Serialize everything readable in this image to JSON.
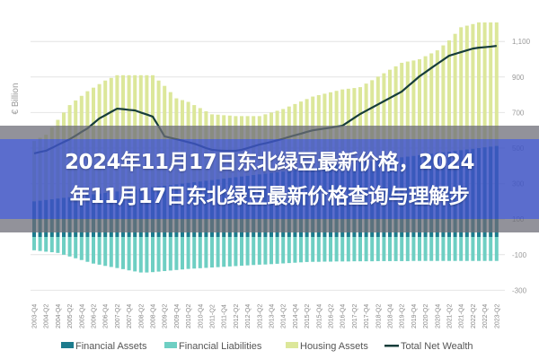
{
  "overlay_title": {
    "line1": "2024年11月17日东北绿豆最新价格，2024",
    "line2": "年11月17日东北绿豆最新价格查询与理解步"
  },
  "chart_data": {
    "type": "bar",
    "title": "",
    "xlabel": "",
    "ylabel": "€ Billion",
    "ylim": [
      -300,
      1200
    ],
    "y_ticks": [
      {
        "value": 1100,
        "label": "1,100"
      },
      {
        "value": 900,
        "label": "900"
      },
      {
        "value": 700,
        "label": "700"
      },
      {
        "value": 500,
        "label": "500"
      },
      {
        "value": 300,
        "label": "300"
      },
      {
        "value": 100,
        "label": "100"
      },
      {
        "value": -100,
        "label": "-100"
      },
      {
        "value": -300,
        "label": "-300"
      }
    ],
    "grid": true,
    "legend_position": "bottom",
    "categories": [
      "2003-Q4",
      "2004-Q1",
      "2004-Q2",
      "2004-Q3",
      "2004-Q4",
      "2005-Q1",
      "2005-Q2",
      "2005-Q3",
      "2005-Q4",
      "2006-Q1",
      "2006-Q2",
      "2006-Q3",
      "2006-Q4",
      "2007-Q1",
      "2007-Q2",
      "2007-Q3",
      "2007-Q4",
      "2008-Q1",
      "2008-Q2",
      "2008-Q3",
      "2008-Q4",
      "2009-Q1",
      "2009-Q2",
      "2009-Q3",
      "2009-Q4",
      "2010-Q1",
      "2010-Q2",
      "2010-Q3",
      "2010-Q4",
      "2011-Q1",
      "2011-Q2",
      "2011-Q3",
      "2011-Q4",
      "2012-Q1",
      "2012-Q2",
      "2012-Q3",
      "2012-Q4",
      "2013-Q1",
      "2013-Q2",
      "2013-Q3",
      "2013-Q4",
      "2014-Q1",
      "2014-Q2",
      "2014-Q3",
      "2014-Q4",
      "2015-Q1",
      "2015-Q2",
      "2015-Q3",
      "2015-Q4",
      "2016-Q1",
      "2016-Q2",
      "2016-Q3",
      "2016-Q4",
      "2017-Q1",
      "2017-Q2",
      "2017-Q3",
      "2017-Q4",
      "2018-Q1",
      "2018-Q2",
      "2018-Q3",
      "2018-Q4",
      "2019-Q1",
      "2019-Q2",
      "2019-Q3",
      "2019-Q4",
      "2020-Q1",
      "2020-Q2",
      "2020-Q3",
      "2020-Q4",
      "2021-Q1",
      "2021-Q2",
      "2021-Q3",
      "2021-Q4",
      "2022-Q1",
      "2022-Q2",
      "2022-Q3",
      "2022-Q4",
      "2023-Q1",
      "2023-Q2"
    ],
    "series": [
      {
        "name": "Housing Assets",
        "type": "bar",
        "color": "#dce79a",
        "values": [
          540,
          558,
          575,
          617,
          659,
          700,
          742,
          768,
          794,
          820,
          840,
          860,
          880,
          895,
          910,
          910,
          910,
          910,
          910,
          910,
          910,
          880,
          850,
          815,
          780,
          770,
          760,
          742,
          725,
          707,
          690,
          688,
          685,
          683,
          680,
          680,
          680,
          680,
          680,
          690,
          700,
          710,
          720,
          734,
          748,
          762,
          776,
          790,
          798,
          806,
          814,
          822,
          830,
          834,
          838,
          843,
          863,
          882,
          902,
          921,
          941,
          960,
          980,
          987,
          993,
          1000,
          1017,
          1033,
          1050,
          1078,
          1106,
          1143,
          1180,
          1189,
          1198,
          1207,
          1207,
          1207,
          1207
        ]
      },
      {
        "name": "Financial Assets",
        "type": "bar",
        "color": "#1c7b8d",
        "values": [
          200,
          204,
          208,
          212,
          216,
          220,
          224,
          228,
          232,
          236,
          240,
          244,
          248,
          252,
          256,
          260,
          264,
          268,
          272,
          276,
          280,
          284,
          288,
          292,
          296,
          300,
          304,
          308,
          312,
          316,
          320,
          324,
          328,
          332,
          336,
          340,
          344,
          348,
          352,
          356,
          360,
          364,
          368,
          372,
          376,
          380,
          384,
          388,
          392,
          396,
          400,
          404,
          408,
          412,
          416,
          420,
          424,
          428,
          432,
          436,
          440,
          444,
          448,
          452,
          456,
          460,
          464,
          468,
          472,
          476,
          480,
          484,
          488,
          492,
          496,
          500,
          504,
          508,
          512
        ]
      },
      {
        "name": "Financial Liabilities",
        "type": "bar",
        "color": "#6ecfc3",
        "values": [
          -75,
          -79,
          -83,
          -86,
          -90,
          -100,
          -110,
          -120,
          -130,
          -140,
          -150,
          -156,
          -163,
          -169,
          -175,
          -181,
          -188,
          -194,
          -200,
          -200,
          -198,
          -195,
          -192,
          -189,
          -186,
          -183,
          -180,
          -178,
          -176,
          -174,
          -172,
          -170,
          -168,
          -166,
          -164,
          -162,
          -160,
          -158,
          -156,
          -155,
          -153,
          -151,
          -149,
          -147,
          -145,
          -143,
          -141,
          -140,
          -140,
          -139,
          -139,
          -138,
          -138,
          -138,
          -137,
          -137,
          -137,
          -137,
          -136,
          -136,
          -136,
          -136,
          -136,
          -136,
          -135,
          -135,
          -135,
          -135,
          -135,
          -135,
          -135,
          -135,
          -135,
          -135,
          -135,
          -135,
          -135,
          -135,
          -135
        ]
      },
      {
        "name": "Total Net Wealth",
        "type": "line",
        "color": "#173d3a",
        "values": [
          470,
          478,
          485,
          501,
          518,
          534,
          550,
          570,
          591,
          611,
          639,
          667,
          685,
          704,
          722,
          719,
          715,
          712,
          700,
          689,
          677,
          622,
          566,
          558,
          550,
          542,
          533,
          525,
          513,
          500,
          490,
          487,
          485,
          485,
          485,
          490,
          500,
          510,
          520,
          527,
          535,
          544,
          553,
          563,
          572,
          581,
          591,
          600,
          605,
          610,
          615,
          621,
          626,
          648,
          670,
          692,
          710,
          728,
          746,
          764,
          782,
          800,
          818,
          847,
          875,
          904,
          927,
          951,
          974,
          997,
          1020,
          1030,
          1040,
          1050,
          1060,
          1065,
          1068,
          1071,
          1075
        ]
      }
    ],
    "legend": [
      {
        "label": "Financial Assets",
        "color": "#1c7b8d",
        "marker": "square"
      },
      {
        "label": "Financial Liabilities",
        "color": "#6ecfc3",
        "marker": "square"
      },
      {
        "label": "Housing Assets",
        "color": "#dce79a",
        "marker": "square"
      },
      {
        "label": "Total Net Wealth",
        "color": "#173d3a",
        "marker": "line"
      }
    ]
  }
}
